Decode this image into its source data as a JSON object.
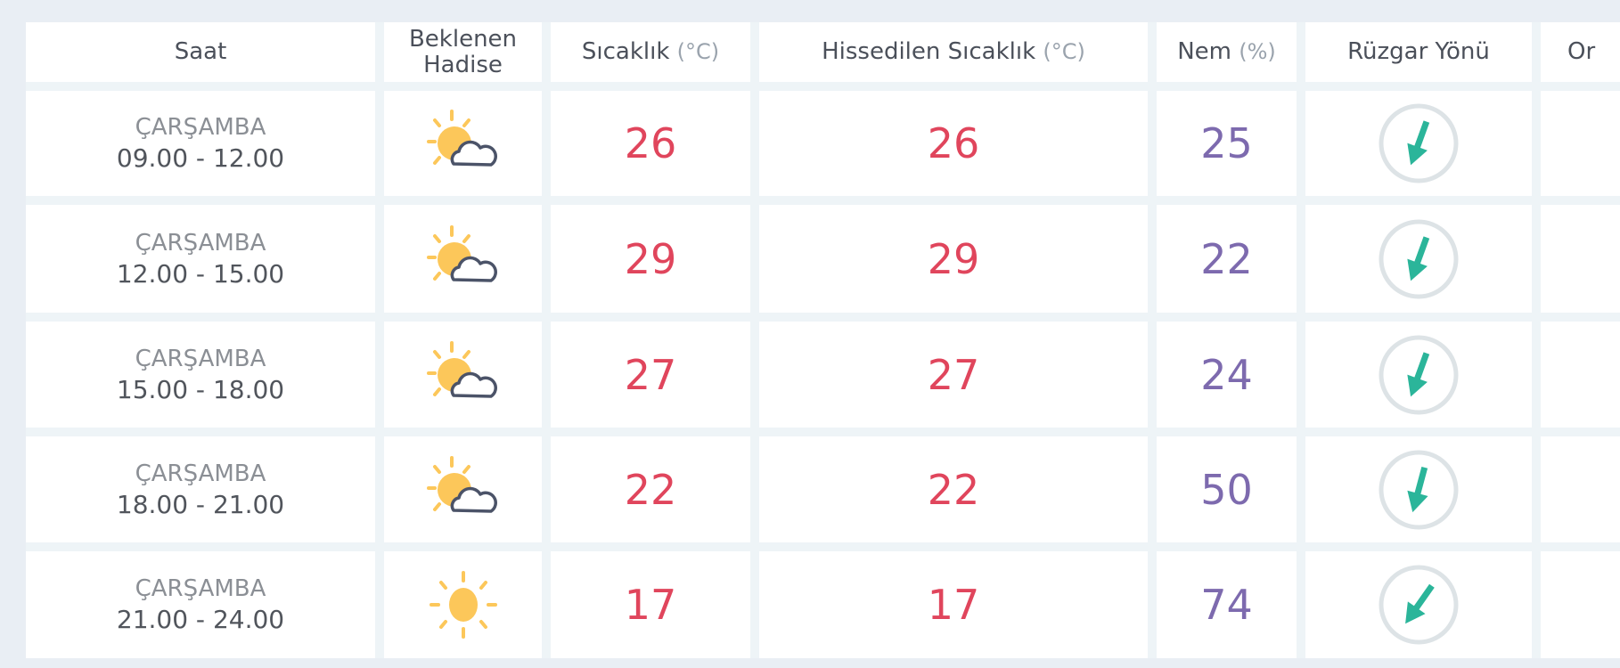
{
  "headers": {
    "saat": "Saat",
    "hadise_1": "Beklenen",
    "hadise_2": "Hadise",
    "sicaklik": "Sıcaklık",
    "sicaklik_unit": "(°C)",
    "hissedilen": "Hissedilen Sıcaklık",
    "hissedilen_unit": "(°C)",
    "nem": "Nem",
    "nem_unit": "(%)",
    "ruzgar": "Rüzgar Yönü",
    "next": "Or"
  },
  "colors": {
    "temperature": "#e0455c",
    "humidity": "#7d6aae",
    "wind_arrow": "#2bb59a",
    "sun": "#fcc75a"
  },
  "rows": [
    {
      "day": "ÇARŞAMBA",
      "time": "09.00 - 12.00",
      "icon": "partly-cloudy-icon",
      "temp": "26",
      "feels": "26",
      "humidity": "25",
      "wind_rotation_deg": 20
    },
    {
      "day": "ÇARŞAMBA",
      "time": "12.00 - 15.00",
      "icon": "partly-cloudy-icon",
      "temp": "29",
      "feels": "29",
      "humidity": "22",
      "wind_rotation_deg": 20
    },
    {
      "day": "ÇARŞAMBA",
      "time": "15.00 - 18.00",
      "icon": "partly-cloudy-icon",
      "temp": "27",
      "feels": "27",
      "humidity": "24",
      "wind_rotation_deg": 20
    },
    {
      "day": "ÇARŞAMBA",
      "time": "18.00 - 21.00",
      "icon": "partly-cloudy-icon",
      "temp": "22",
      "feels": "22",
      "humidity": "50",
      "wind_rotation_deg": 15
    },
    {
      "day": "ÇARŞAMBA",
      "time": "21.00 - 24.00",
      "icon": "sun-icon",
      "temp": "17",
      "feels": "17",
      "humidity": "74",
      "wind_rotation_deg": 35
    }
  ]
}
